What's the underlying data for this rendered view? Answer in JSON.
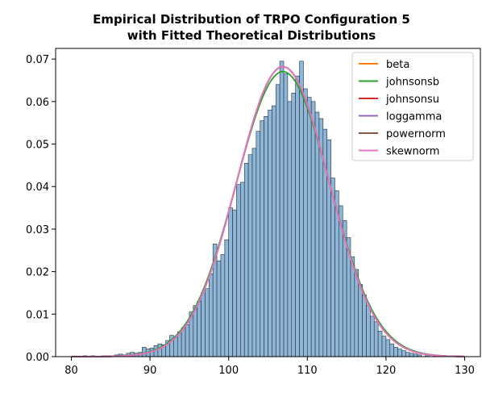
{
  "chart_data": {
    "type": "bar",
    "title": "Empirical Distribution of TRPO Configuration 5",
    "subtitle": "with Fitted Theoretical Distributions",
    "xlabel": "",
    "ylabel": "",
    "xlim": [
      78,
      132
    ],
    "ylim": [
      0,
      0.0725
    ],
    "x_ticks": [
      80,
      90,
      100,
      110,
      120,
      130
    ],
    "y_ticks": [
      0.0,
      0.01,
      0.02,
      0.03,
      0.04,
      0.05,
      0.06,
      0.07
    ],
    "y_tick_labels": [
      "0.00",
      "0.01",
      "0.02",
      "0.03",
      "0.04",
      "0.05",
      "0.06",
      "0.07"
    ],
    "grid": false,
    "legend_position": "top-right",
    "histogram": {
      "bin_width": 0.5,
      "bar_color": "#8fb6d6",
      "edge_color": "#1f2f3f",
      "bins": [
        [
          81.5,
          0.0002
        ],
        [
          82.5,
          0.0002
        ],
        [
          84.0,
          0.0002
        ],
        [
          84.5,
          0.0002
        ],
        [
          85.5,
          0.0004
        ],
        [
          86.0,
          0.0006
        ],
        [
          86.5,
          0.0004
        ],
        [
          87.0,
          0.0008
        ],
        [
          87.5,
          0.001
        ],
        [
          88.0,
          0.0008
        ],
        [
          88.5,
          0.001
        ],
        [
          89.0,
          0.0022
        ],
        [
          89.5,
          0.0018
        ],
        [
          90.0,
          0.002
        ],
        [
          90.5,
          0.0026
        ],
        [
          91.0,
          0.003
        ],
        [
          91.5,
          0.0028
        ],
        [
          92.0,
          0.0038
        ],
        [
          92.5,
          0.005
        ],
        [
          93.0,
          0.0046
        ],
        [
          93.5,
          0.0058
        ],
        [
          94.0,
          0.0068
        ],
        [
          94.5,
          0.0075
        ],
        [
          95.0,
          0.0105
        ],
        [
          95.5,
          0.012
        ],
        [
          96.0,
          0.013
        ],
        [
          96.5,
          0.015
        ],
        [
          97.0,
          0.016
        ],
        [
          97.5,
          0.0195
        ],
        [
          98.0,
          0.0265
        ],
        [
          98.5,
          0.0225
        ],
        [
          99.0,
          0.024
        ],
        [
          99.5,
          0.0275
        ],
        [
          100.0,
          0.035
        ],
        [
          100.5,
          0.0345
        ],
        [
          101.0,
          0.0405
        ],
        [
          101.5,
          0.041
        ],
        [
          102.0,
          0.0455
        ],
        [
          102.5,
          0.0475
        ],
        [
          103.0,
          0.049
        ],
        [
          103.5,
          0.053
        ],
        [
          104.0,
          0.0555
        ],
        [
          104.5,
          0.0565
        ],
        [
          105.0,
          0.058
        ],
        [
          105.5,
          0.059
        ],
        [
          106.0,
          0.064
        ],
        [
          106.5,
          0.0695
        ],
        [
          107.0,
          0.0665
        ],
        [
          107.5,
          0.06
        ],
        [
          108.0,
          0.062
        ],
        [
          108.5,
          0.066
        ],
        [
          109.0,
          0.0695
        ],
        [
          109.5,
          0.063
        ],
        [
          110.0,
          0.061
        ],
        [
          110.5,
          0.06
        ],
        [
          111.0,
          0.0575
        ],
        [
          111.5,
          0.056
        ],
        [
          112.0,
          0.0535
        ],
        [
          112.5,
          0.051
        ],
        [
          113.0,
          0.042
        ],
        [
          113.5,
          0.039
        ],
        [
          114.0,
          0.0355
        ],
        [
          114.5,
          0.032
        ],
        [
          115.0,
          0.028
        ],
        [
          115.5,
          0.0235
        ],
        [
          116.0,
          0.0205
        ],
        [
          116.5,
          0.017
        ],
        [
          117.0,
          0.0145
        ],
        [
          117.5,
          0.012
        ],
        [
          118.0,
          0.0095
        ],
        [
          118.5,
          0.0082
        ],
        [
          119.0,
          0.006
        ],
        [
          119.5,
          0.0048
        ],
        [
          120.0,
          0.004
        ],
        [
          120.5,
          0.003
        ],
        [
          121.0,
          0.0022
        ],
        [
          121.5,
          0.0018
        ],
        [
          122.0,
          0.0014
        ],
        [
          122.5,
          0.001
        ],
        [
          123.0,
          0.0008
        ],
        [
          123.5,
          0.0006
        ],
        [
          124.0,
          0.0004
        ],
        [
          125.0,
          0.0004
        ],
        [
          126.0,
          0.0002
        ],
        [
          127.0,
          0.0002
        ]
      ]
    },
    "series": [
      {
        "name": "beta",
        "color": "#ff7f0e",
        "mean": 106.9,
        "sd": 5.85,
        "skew": 0
      },
      {
        "name": "johnsonsb",
        "color": "#2ca02c",
        "mean": 106.9,
        "sd": 5.95,
        "skew": 0
      },
      {
        "name": "johnsonsu",
        "color": "#d62728",
        "mean": 106.9,
        "sd": 5.85,
        "skew": 0
      },
      {
        "name": "loggamma",
        "color": "#9467bd",
        "mean": 106.9,
        "sd": 5.85,
        "skew": 0
      },
      {
        "name": "powernorm",
        "color": "#8c564b",
        "mean": 106.9,
        "sd": 5.85,
        "skew": 0
      },
      {
        "name": "skewnorm",
        "color": "#e377c2",
        "mean": 106.9,
        "sd": 5.85,
        "skew": 0
      }
    ]
  }
}
